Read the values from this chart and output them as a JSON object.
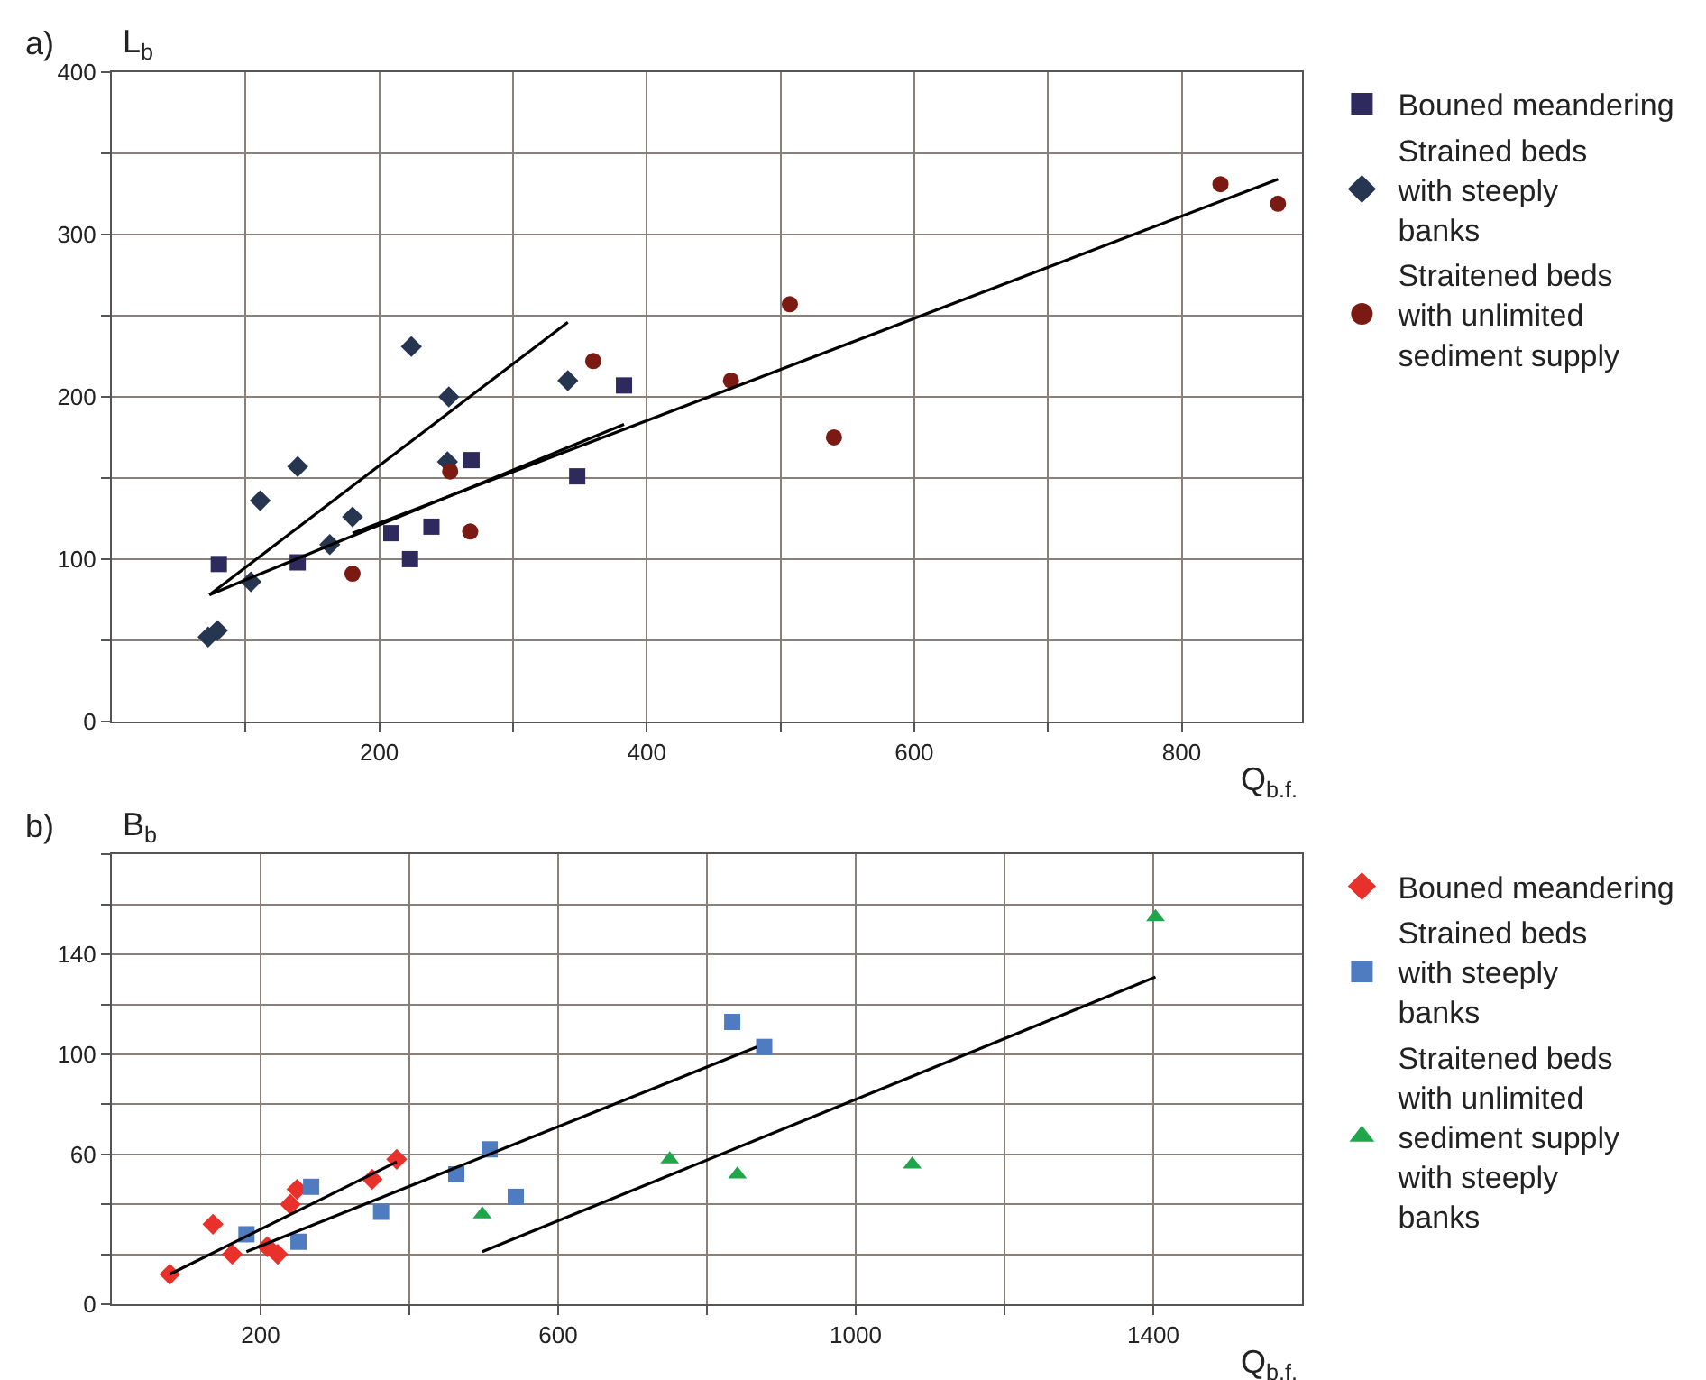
{
  "chart_data": [
    {
      "type": "scatter",
      "ylabel": "L$_{b}$",
      "xlabel": "Q$_{b.f.}$",
      "annotations": [
        "a)"
      ],
      "legend": "right",
      "grid": true,
      "xlim": [
        0,
        890
      ],
      "xticks": [
        {
          "value": 100,
          "label": null
        },
        200,
        {
          "value": 300,
          "label": null
        },
        400,
        {
          "value": 500,
          "label": null
        },
        600,
        {
          "value": 700,
          "label": null
        },
        800
      ],
      "ylim": [
        0,
        400
      ],
      "yticks": [
        0,
        {
          "value": 50,
          "label": null
        },
        100,
        {
          "value": 150,
          "label": null
        },
        200,
        {
          "value": 250,
          "label": null
        },
        300,
        {
          "value": 350,
          "label": null
        },
        400
      ],
      "series": [
        {
          "name": "Bouned meandering",
          "color": "#2e2a5e",
          "marker": "square",
          "x": [
            80,
            139,
            209,
            239,
            223,
            269,
            348,
            383
          ],
          "values": [
            97,
            98,
            116,
            120,
            100,
            161,
            151,
            207
          ]
        },
        {
          "name": "Strained beds with steeply banks",
          "color": "#263650",
          "marker": "diamond",
          "x": [
            72,
            79,
            104,
            111,
            139,
            163,
            180,
            224,
            252,
            251,
            341
          ],
          "values": [
            52,
            56,
            86,
            136,
            157,
            109,
            126,
            231,
            200,
            160,
            210
          ]
        },
        {
          "name": "Straitened beds with unlimited sediment supply",
          "color": "#7b1a12",
          "marker": "circle",
          "x": [
            180,
            253,
            268,
            360,
            463,
            507,
            540,
            829,
            872
          ],
          "values": [
            91,
            154,
            117,
            222,
            210,
            257,
            175,
            331,
            319
          ]
        },
        {
          "type": "line",
          "color": "#000000",
          "marker": "none",
          "x": [
            73,
            341
          ],
          "values": [
            78,
            246
          ]
        },
        {
          "type": "line",
          "color": "#000000",
          "marker": "none",
          "x": [
            73,
            383
          ],
          "values": [
            78,
            183
          ]
        },
        {
          "type": "line",
          "color": "#000000",
          "marker": "none",
          "x": [
            180,
            872
          ],
          "values": [
            116,
            334
          ]
        }
      ]
    },
    {
      "type": "scatter",
      "ylabel": "B$_{b}$",
      "xlabel": "Q$_{b.f.}$",
      "annotations": [
        "b)"
      ],
      "legend": "right",
      "grid": true,
      "xlim": [
        0,
        1600
      ],
      "xticks": [
        200,
        {
          "value": 400,
          "label": null
        },
        600,
        {
          "value": 800,
          "label": null
        },
        1000,
        {
          "value": 1200,
          "label": null
        },
        1400
      ],
      "ylim": [
        0,
        180
      ],
      "yticks": [
        0,
        {
          "value": 20,
          "label": null
        },
        {
          "value": 40,
          "label": null
        },
        60,
        {
          "value": 80,
          "label": null
        },
        100,
        {
          "value": 120,
          "label": null
        },
        140,
        {
          "value": 160,
          "label": null
        },
        {
          "value": 180,
          "label": null
        }
      ],
      "series": [
        {
          "name": "Bouned meandering",
          "color": "#e8312a",
          "marker": "diamond",
          "x": [
            78,
            136,
            162,
            209,
            223,
            240,
            249,
            350,
            383
          ],
          "values": [
            12,
            32,
            20,
            23,
            20,
            40,
            46,
            50,
            58
          ]
        },
        {
          "name": "Strained beds with steeply banks",
          "color": "#4f7cc0",
          "marker": "square",
          "x": [
            181,
            251,
            268,
            362,
            463,
            508,
            543,
            834,
            877
          ],
          "values": [
            28,
            25,
            47,
            37,
            52,
            62,
            43,
            113,
            103
          ]
        },
        {
          "name": "Straitened beds with unlimited sediment supply with steeply banks",
          "color": "#1fa64a",
          "marker": "triangle",
          "x": [
            498,
            750,
            841,
            1076,
            1403
          ],
          "values": [
            36,
            58,
            52,
            56,
            155
          ]
        },
        {
          "type": "line",
          "color": "#000000",
          "marker": "none",
          "x": [
            78,
            383
          ],
          "values": [
            12,
            57
          ]
        },
        {
          "type": "line",
          "color": "#000000",
          "marker": "none",
          "x": [
            181,
            867
          ],
          "values": [
            21,
            103
          ]
        },
        {
          "type": "line",
          "color": "#000000",
          "marker": "none",
          "x": [
            498,
            1403
          ],
          "values": [
            21,
            131
          ]
        }
      ]
    }
  ]
}
